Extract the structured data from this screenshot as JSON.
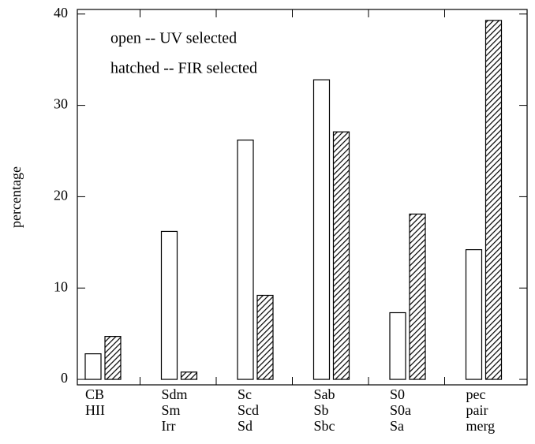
{
  "chart_data": {
    "type": "bar",
    "y_label": "percentage",
    "categories": [
      [
        "CB",
        "HII"
      ],
      [
        "Sdm",
        "Sm",
        "Irr"
      ],
      [
        "Sc",
        "Scd",
        "Sd"
      ],
      [
        "Sab",
        "Sb",
        "Sbc"
      ],
      [
        "S0",
        "S0a",
        "Sa"
      ],
      [
        "pec",
        "pair",
        "merg"
      ]
    ],
    "series": [
      {
        "name": "open -- UV selected",
        "color": "#000000",
        "pattern": "none",
        "values": [
          2.8,
          16.2,
          26.2,
          32.8,
          7.3,
          14.2
        ]
      },
      {
        "name": "hatched -- FIR selected",
        "color": "#000000",
        "pattern": "hatch",
        "values": [
          4.7,
          0.8,
          9.2,
          27.1,
          18.1,
          39.3
        ]
      }
    ],
    "ylim": [
      -0.6,
      40.5
    ],
    "yticks": [
      0,
      10,
      20,
      30,
      40
    ],
    "legend": "upper left"
  }
}
